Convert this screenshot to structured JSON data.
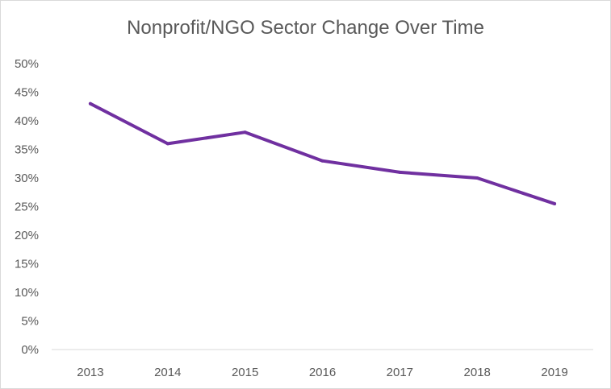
{
  "chart_data": {
    "type": "line",
    "title": "Nonprofit/NGO Sector Change Over Time",
    "categories": [
      "2013",
      "2014",
      "2015",
      "2016",
      "2017",
      "2018",
      "2019"
    ],
    "series": [
      {
        "values": [
          43,
          36,
          38,
          33,
          31,
          30,
          25.5
        ],
        "color": "#7030a0"
      }
    ],
    "ylim": [
      0,
      50
    ],
    "yticks": [
      0,
      5,
      10,
      15,
      20,
      25,
      30,
      35,
      40,
      45,
      50
    ],
    "ytick_labels": [
      "0%",
      "5%",
      "10%",
      "15%",
      "20%",
      "25%",
      "30%",
      "35%",
      "40%",
      "45%",
      "50%"
    ],
    "xlabel": "",
    "ylabel": "",
    "grid": false,
    "legend": "none",
    "axis_color": "#d9d9d9",
    "text_color": "#595959"
  }
}
